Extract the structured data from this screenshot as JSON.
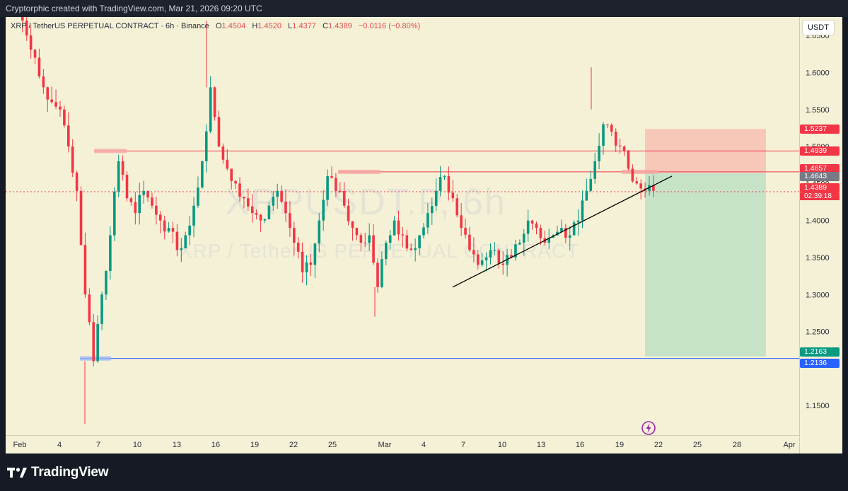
{
  "header": {
    "caption": "Cryptorphic created with TradingView.com, Mar 21, 2026 09:20 UTC"
  },
  "legend": {
    "symbol": "XRP / TetherUS PERPETUAL CONTRACT · 6h · Binance",
    "open_label": "O",
    "open": "1.4504",
    "high_label": "H",
    "high": "1.4520",
    "low_label": "L",
    "low": "1.4377",
    "close_label": "C",
    "close": "1.4389",
    "change": "−0.0116 (−0.80%)"
  },
  "watermark": {
    "ticker": "XRPUSDT.P, 6h",
    "name": "XRP / TetherUS PERPETUAL CONTRACT"
  },
  "price_axis": {
    "unit_button": "USDT",
    "ticks": [
      "1.6500",
      "1.6000",
      "1.5500",
      "1.5000",
      "1.4500",
      "1.4000",
      "1.3500",
      "1.3000",
      "1.2500",
      "1.1500"
    ],
    "tick_values": [
      1.65,
      1.6,
      1.55,
      1.5,
      1.45,
      1.4,
      1.35,
      1.3,
      1.25,
      1.15
    ]
  },
  "time_axis": {
    "ticks": [
      "Feb",
      "4",
      "7",
      "10",
      "13",
      "16",
      "19",
      "22",
      "25",
      "Mar",
      "4",
      "7",
      "10",
      "13",
      "16",
      "19",
      "22",
      "25",
      "28",
      "Apr"
    ]
  },
  "price_tags": [
    {
      "label": "1.5237",
      "value": 1.5237,
      "color": "#f23645"
    },
    {
      "label": "1.4939",
      "value": 1.4939,
      "color": "#f23645"
    },
    {
      "label": "1.4657",
      "value": 1.4657,
      "color": "#f23645"
    },
    {
      "label": "1.4643",
      "value": 1.4643,
      "color": "#787b86"
    },
    {
      "label": "1.4389",
      "value": 1.4389,
      "color": "#f23645",
      "countdown": "02:39:18"
    },
    {
      "label": "1.2163",
      "value": 1.2163,
      "color": "#089981"
    },
    {
      "label": "1.2136",
      "value": 1.2136,
      "color": "#2962ff"
    }
  ],
  "levels": {
    "resistance_high": 1.4939,
    "resistance_low": 1.4657,
    "support": 1.2136,
    "current": 1.4389
  },
  "position": {
    "entry": 1.4643,
    "stop": 1.5237,
    "target": 1.2163
  },
  "trendline": {
    "from": {
      "date": "Mar 6",
      "price": 1.31
    },
    "to": {
      "date": "Mar 22",
      "price": 1.46
    }
  },
  "chart_data": {
    "type": "candlestick",
    "title": "XRP / TetherUS PERPETUAL CONTRACT",
    "timeframe": "6h",
    "ylim": [
      1.12,
      1.7
    ],
    "closes_approx": [
      1.69,
      1.65,
      1.62,
      1.58,
      1.56,
      1.55,
      1.5,
      1.44,
      1.3,
      1.21,
      1.3,
      1.38,
      1.48,
      1.43,
      1.41,
      1.44,
      1.42,
      1.4,
      1.39,
      1.36,
      1.38,
      1.42,
      1.48,
      1.58,
      1.5,
      1.47,
      1.45,
      1.43,
      1.41,
      1.4,
      1.42,
      1.44,
      1.41,
      1.37,
      1.33,
      1.34,
      1.4,
      1.46,
      1.44,
      1.42,
      1.39,
      1.37,
      1.38,
      1.31,
      1.37,
      1.4,
      1.38,
      1.36,
      1.38,
      1.41,
      1.44,
      1.46,
      1.43,
      1.39,
      1.36,
      1.34,
      1.35,
      1.36,
      1.34,
      1.35,
      1.37,
      1.4,
      1.39,
      1.37,
      1.38,
      1.39,
      1.38,
      1.4,
      1.44,
      1.48,
      1.53,
      1.52,
      1.5,
      1.47,
      1.45,
      1.44,
      1.44
    ]
  }
}
